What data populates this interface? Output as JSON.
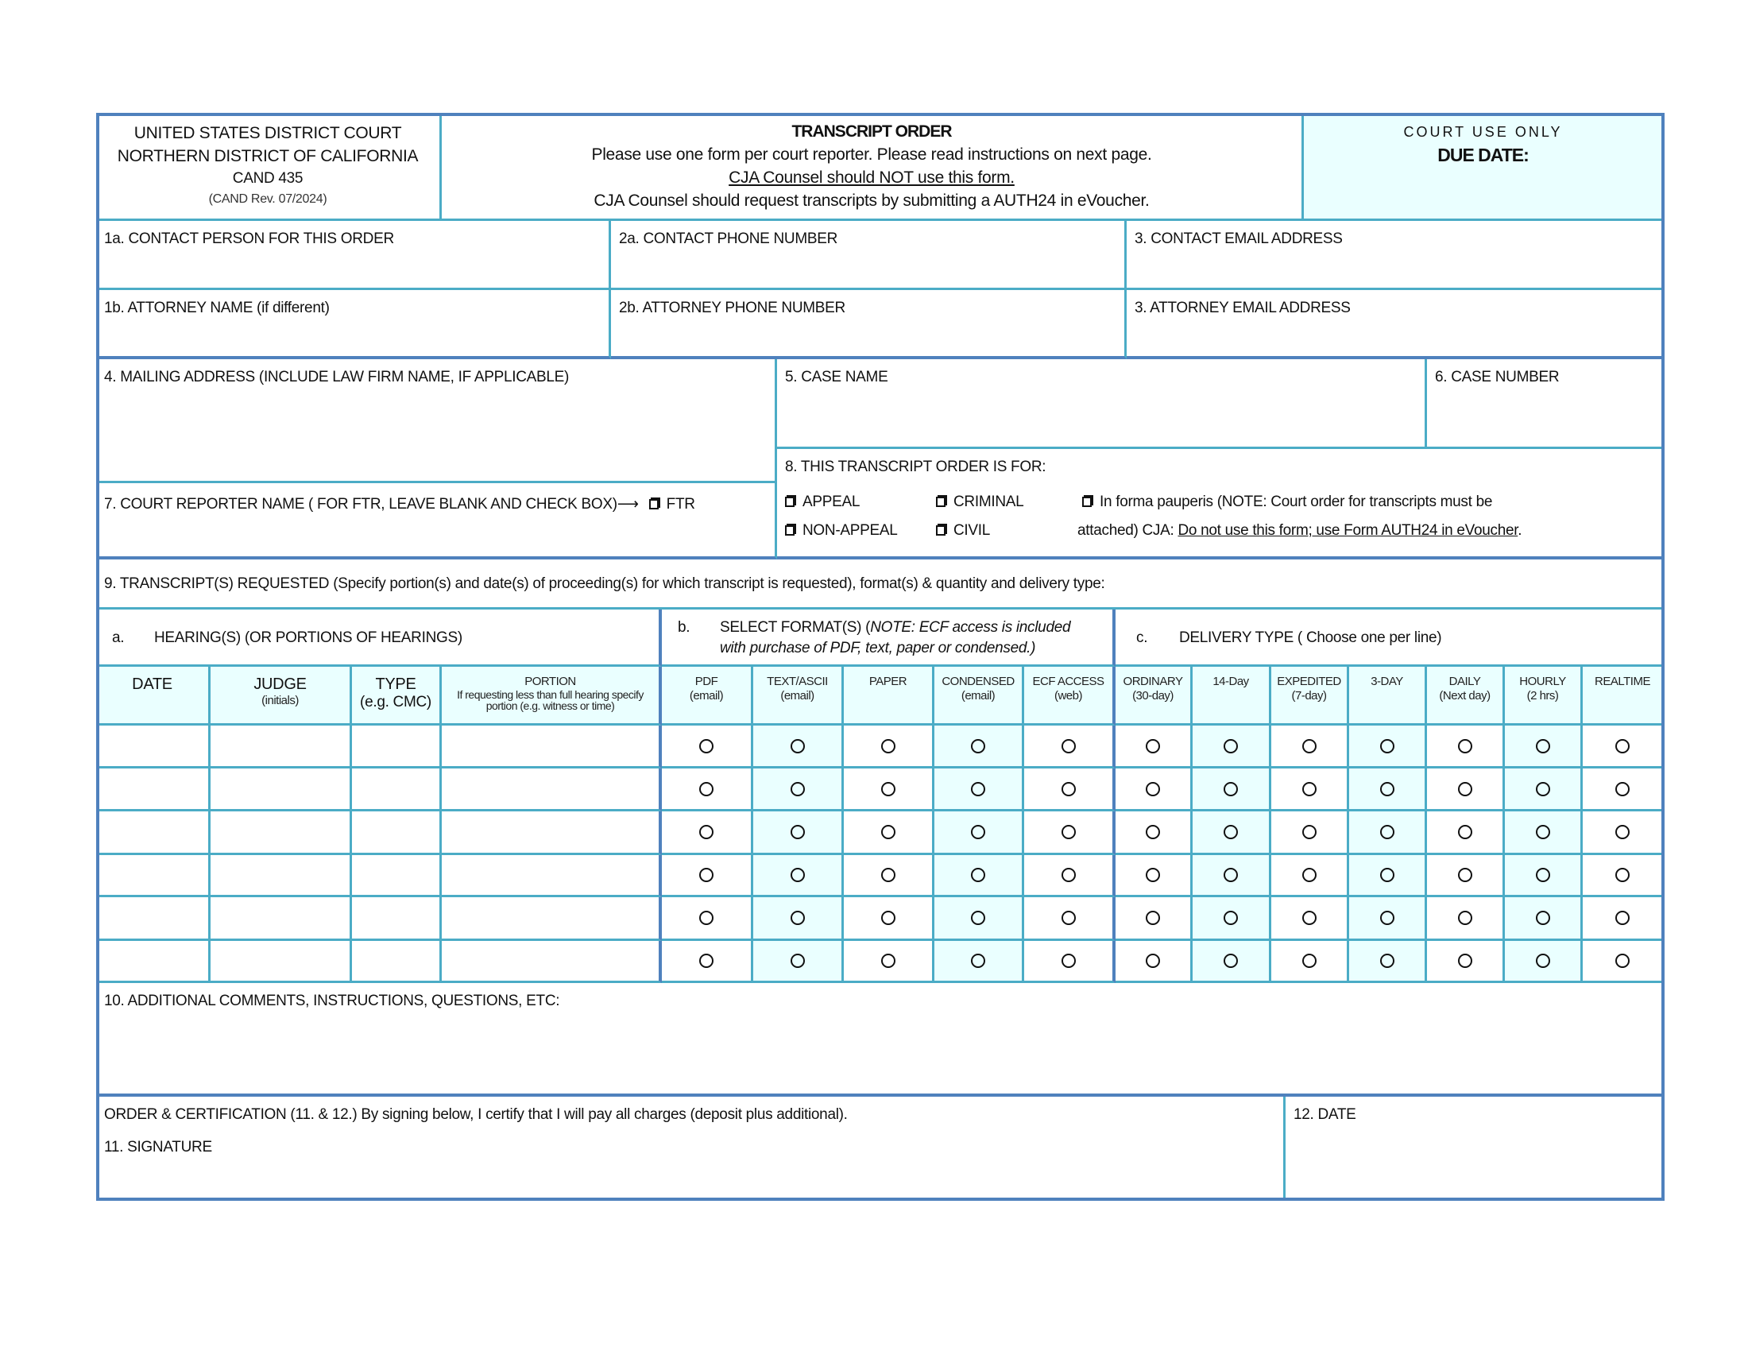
{
  "header": {
    "court_line1": "UNITED STATES DISTRICT COURT",
    "court_line2": "NORTHERN DISTRICT OF CALIFORNIA",
    "form_id": "CAND 435",
    "revision": "(CAND Rev. 07/2024)",
    "title": "TRANSCRIPT ORDER",
    "instruction1": "Please use one form per court reporter.  Please read instructions on next page.",
    "instruction2": "CJA Counsel should NOT use this form.",
    "instruction3": "CJA Counsel should request transcripts by submitting a AUTH24 in eVoucher.",
    "court_use": "COURT USE ONLY",
    "due_date": "DUE DATE:"
  },
  "fields": {
    "contact_person": "1a. CONTACT PERSON FOR THIS ORDER",
    "contact_phone": "2a. CONTACT PHONE NUMBER",
    "contact_email": "3. CONTACT EMAIL ADDRESS",
    "attorney_name": "1b. ATTORNEY NAME (if different)",
    "attorney_phone": "2b. ATTORNEY PHONE NUMBER",
    "attorney_email": "3. ATTORNEY EMAIL ADDRESS",
    "mailing_address": "4. MAILING ADDRESS (INCLUDE LAW FIRM NAME, IF APPLICABLE)",
    "case_name": "5. CASE NAME",
    "case_number": "6. CASE NUMBER",
    "court_reporter": "7. COURT REPORTER NAME ( FOR FTR, LEAVE BLANK AND CHECK BOX)⟶",
    "ftr": "FTR"
  },
  "order_for": {
    "label": "8. THIS TRANSCRIPT ORDER IS FOR:",
    "appeal": "APPEAL",
    "non_appeal": "NON-APPEAL",
    "criminal": "CRIMINAL",
    "civil": "CIVIL",
    "ifp_line1": "In forma pauperis (NOTE: Court order for transcripts must be",
    "ifp_line2_prefix": "attached) CJA: ",
    "ifp_line2_link": "Do not use this form; use Form AUTH24 in eVoucher",
    "ifp_line2_suffix": "."
  },
  "transcripts": {
    "label": "9. TRANSCRIPT(S) REQUESTED (Specify portion(s) and date(s) of proceeding(s) for which transcript is requested), format(s) & quantity and delivery type:",
    "a_letter": "a.",
    "a_label": "HEARING(S) (OR PORTIONS OF HEARINGS)",
    "b_letter": "b.",
    "b_label": "SELECT FORMAT(S)  (",
    "b_note1": "NOTE:  ECF access is included",
    "b_note2": "with purchase of PDF, text, paper or condensed.)",
    "c_letter": "c.",
    "c_label": "DELIVERY TYPE ( Choose one per line)",
    "columns": [
      {
        "main": "DATE",
        "sub": ""
      },
      {
        "main": "JUDGE",
        "sub": "(initials)"
      },
      {
        "main": "TYPE",
        "sub": "(e.g. CMC)"
      },
      {
        "main": "PORTION",
        "sub": "If requesting less than full hearing specify portion (e.g. witness or time)"
      },
      {
        "main": "PDF",
        "sub": "(email)"
      },
      {
        "main": "TEXT/ASCII",
        "sub": "(email)"
      },
      {
        "main": "PAPER",
        "sub": ""
      },
      {
        "main": "CONDENSED",
        "sub": "(email)"
      },
      {
        "main": "ECF ACCESS",
        "sub": "(web)"
      },
      {
        "main": "ORDINARY",
        "sub": "(30-day)"
      },
      {
        "main": "14-Day",
        "sub": ""
      },
      {
        "main": "EXPEDITED",
        "sub": "(7-day)"
      },
      {
        "main": "3-DAY",
        "sub": ""
      },
      {
        "main": "DAILY",
        "sub": "(Next day)"
      },
      {
        "main": "HOURLY",
        "sub": "(2 hrs)"
      },
      {
        "main": "REALTIME",
        "sub": ""
      }
    ],
    "row_count": 6,
    "colors": {
      "border_outer": "#4f81bd",
      "border_inner": "#4bacc6",
      "tint": "#eaffff"
    }
  },
  "comments": {
    "label": "10. ADDITIONAL COMMENTS, INSTRUCTIONS, QUESTIONS, ETC:"
  },
  "certification": {
    "label": "ORDER & CERTIFICATION (11. & 12.) By signing below, I certify that I will pay all charges (deposit plus additional).",
    "signature": "11. SIGNATURE",
    "date": "12. DATE"
  }
}
